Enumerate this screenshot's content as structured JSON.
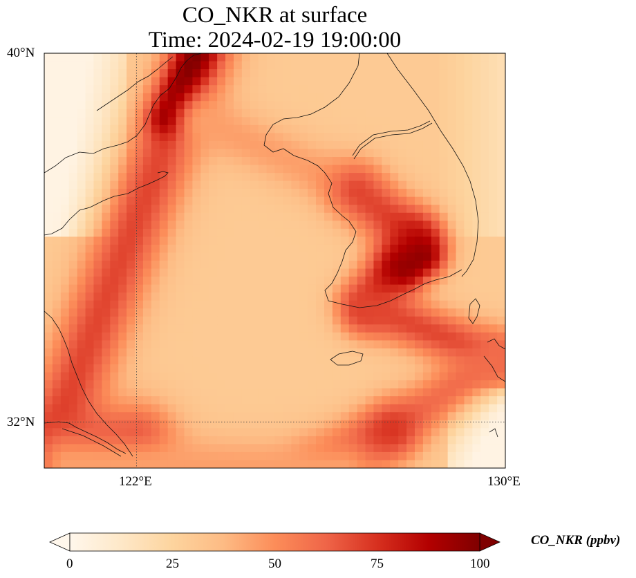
{
  "title": {
    "line1": "CO_NKR at surface",
    "line2": "Time: 2024-02-19 19:00:00"
  },
  "map": {
    "type": "heatmap",
    "projection": "PlateCarree",
    "lon_range": [
      120,
      130
    ],
    "lat_range": [
      31,
      40
    ],
    "lon_ticks": [
      {
        "value": 122,
        "label": "122°E"
      },
      {
        "value": 130,
        "label": "130°E"
      }
    ],
    "lat_ticks": [
      {
        "value": 40,
        "label": "40°N"
      },
      {
        "value": 32,
        "label": "32°N"
      }
    ],
    "gridlines": "dotted at 122°E and 32°N",
    "coastlines": true,
    "colormap": "OrRd"
  },
  "colorbar": {
    "label": "CO_NKR (ppbv)",
    "min": 0,
    "max": 100,
    "ticks": [
      {
        "value": 0,
        "label": "0"
      },
      {
        "value": 25,
        "label": "25"
      },
      {
        "value": 50,
        "label": "50"
      },
      {
        "value": 75,
        "label": "75"
      },
      {
        "value": 100,
        "label": "100"
      }
    ],
    "extend": "both",
    "colors": [
      "#fff7ec",
      "#fee8c8",
      "#fdd49e",
      "#fdbb84",
      "#fc8d59",
      "#ef6548",
      "#d7301f",
      "#b30000",
      "#7f0000"
    ]
  },
  "chart_data": {
    "type": "heatmap",
    "title": "CO_NKR at surface\nTime: 2024-02-19 19:00:00",
    "variable": "CO_NKR",
    "units": "ppbv",
    "value_range": [
      0,
      100
    ],
    "features": [
      {
        "description": "high-concentration band",
        "lon": [
          122.7,
          123.3
        ],
        "lat": [
          38.5,
          40.0
        ],
        "value": 100
      },
      {
        "description": "plume band west coast Korea",
        "lon": [
          126.0,
          128.0
        ],
        "lat": [
          35.0,
          38.0
        ],
        "value": 75
      },
      {
        "description": "hotspot south Korean coast",
        "lon": [
          127.5,
          128.5
        ],
        "lat": [
          35.0,
          36.0
        ],
        "value": 95
      },
      {
        "description": "plume toward Kyushu",
        "lon": [
          127.0,
          130.0
        ],
        "lat": [
          32.5,
          34.0
        ],
        "value": 70
      },
      {
        "description": "plume near Yangtze mouth",
        "lon": [
          120.0,
          122.0
        ],
        "lat": [
          31.0,
          32.5
        ],
        "value": 80
      },
      {
        "description": "central Yellow Sea background",
        "lon": [
          122.0,
          126.0
        ],
        "lat": [
          33.0,
          38.0
        ],
        "value": 30
      },
      {
        "description": "southeast corner background",
        "lon": [
          129.0,
          130.0
        ],
        "lat": [
          31.0,
          32.5
        ],
        "value": 5
      },
      {
        "description": "northwest corner background",
        "lon": [
          120.0,
          121.5
        ],
        "lat": [
          37.0,
          40.0
        ],
        "value": 5
      }
    ]
  }
}
